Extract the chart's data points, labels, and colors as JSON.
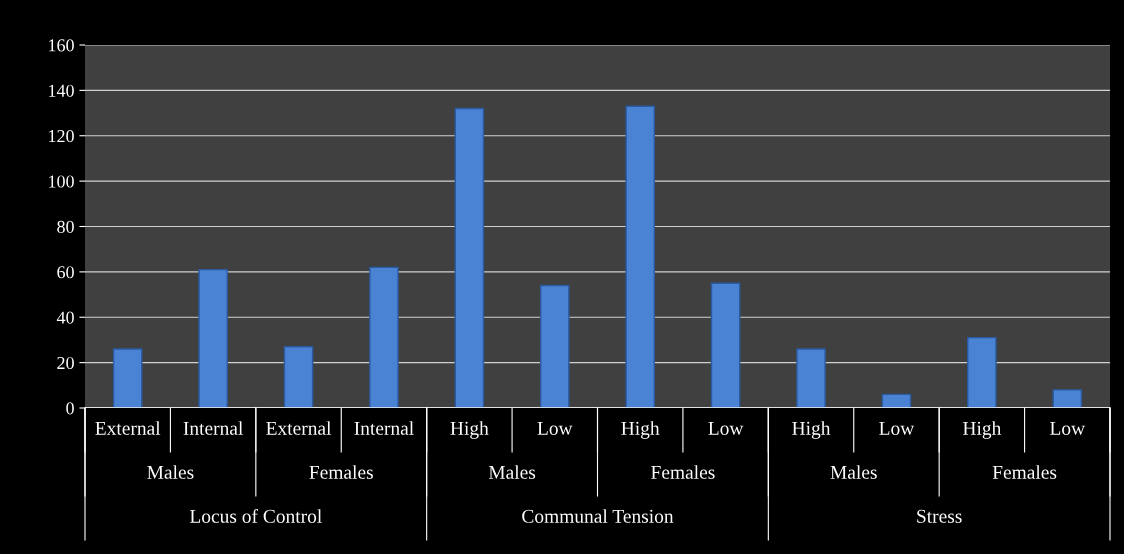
{
  "chart_data": {
    "type": "bar",
    "categories": [
      "External",
      "Internal",
      "External",
      "Internal",
      "High",
      "Low",
      "High",
      "Low",
      "High",
      "Low",
      "High",
      "Low"
    ],
    "values": [
      26,
      61,
      27,
      62,
      132,
      54,
      133,
      55,
      26,
      6,
      31,
      8
    ],
    "color": "#4a82d4",
    "ylim": [
      0,
      160
    ],
    "yticks": [
      0,
      20,
      40,
      60,
      80,
      100,
      120,
      140,
      160
    ],
    "grid": "y",
    "legend": false,
    "annotations": [
      "Males",
      "Females",
      "Males",
      "Females",
      "Males",
      "Females",
      "Locus of Control",
      "Communal Tension",
      "Stress"
    ]
  }
}
